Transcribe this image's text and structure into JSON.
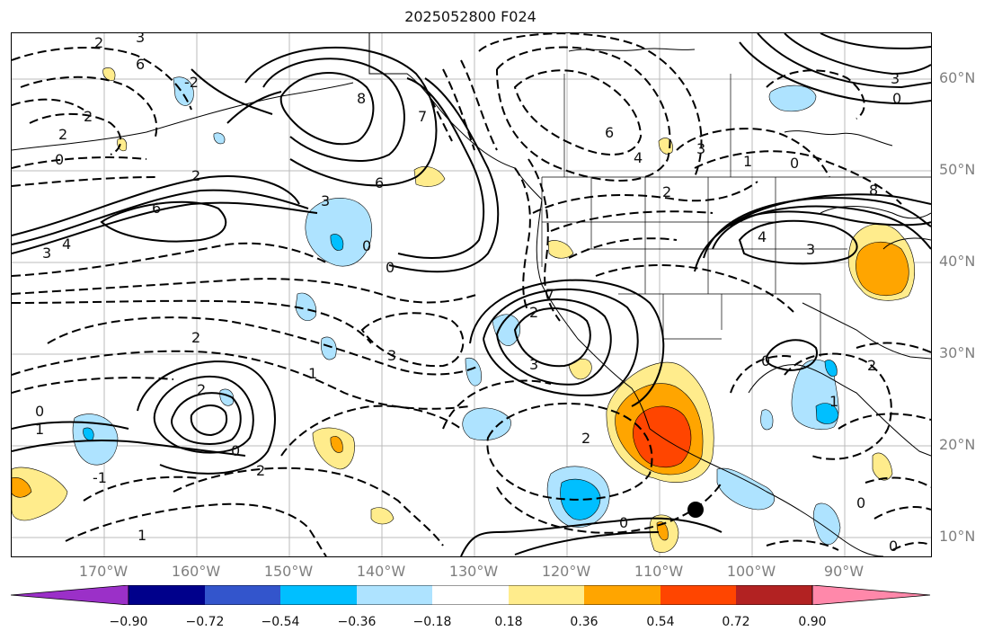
{
  "title": "2025052800 F024",
  "lat_labels": [
    "60°N",
    "50°N",
    "40°N",
    "30°N",
    "20°N",
    "10°N"
  ],
  "lon_labels": [
    "170°W",
    "160°W",
    "150°W",
    "140°W",
    "130°W",
    "120°W",
    "110°W",
    "100°W",
    "90°W"
  ],
  "colorbar": {
    "ticks": [
      "−0.90",
      "−0.72",
      "−0.54",
      "−0.36",
      "−0.18",
      "0.18",
      "0.36",
      "0.54",
      "0.72",
      "0.90"
    ],
    "colors": [
      "#9b30c8",
      "#00008b",
      "#3355cc",
      "#00bfff",
      "#aee3ff",
      "#ffffff",
      "#ffec8c",
      "#ffa500",
      "#ff4500",
      "#b22222",
      "#ff88aa"
    ]
  },
  "contour_labels": [
    "2",
    "3",
    "6",
    "2",
    "2",
    "0",
    "-2",
    "6",
    "4",
    "3",
    "2",
    "8",
    "7",
    "6",
    "3",
    "0",
    "0",
    "6",
    "4",
    "3",
    "2",
    "1",
    "0",
    "4",
    "3",
    "0",
    "2",
    "2",
    "1",
    "3",
    "7",
    "3",
    "2",
    "0",
    "1",
    "1",
    "0",
    "-1",
    "2",
    "0",
    "2",
    "2",
    "0",
    "0",
    "1",
    "3",
    "0",
    "8"
  ],
  "colors": {
    "light_blue": "#aee3ff",
    "blue": "#00bfff",
    "yellow": "#ffec8c",
    "orange": "#ffa500",
    "red": "#ff4500"
  }
}
